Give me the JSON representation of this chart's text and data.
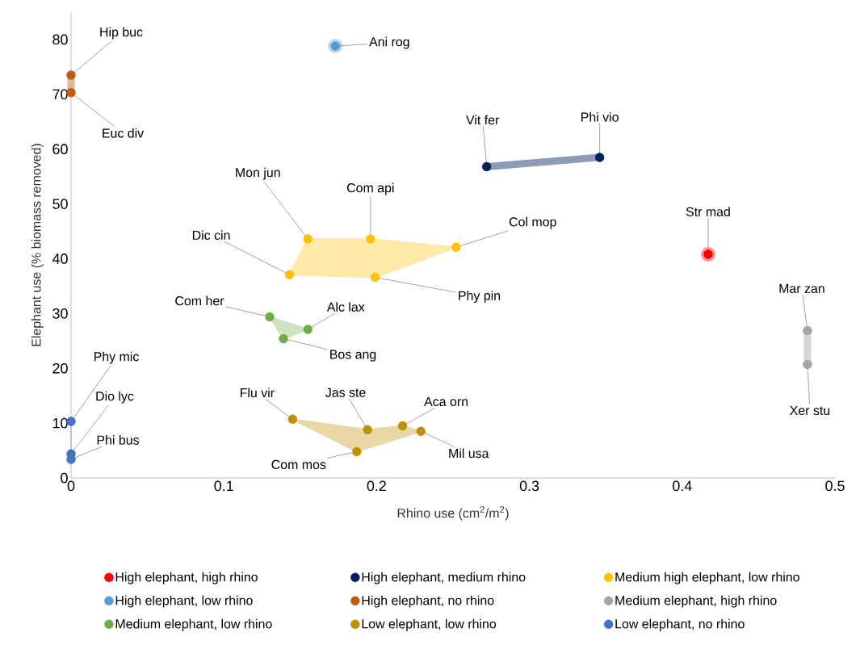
{
  "chart_data": {
    "type": "scatter",
    "xlabel": "Rhino use (cm$^{2}$/m$^{2}$)",
    "ylabel": "Elephant use (% biomass removed)",
    "xlim": [
      0,
      0.5
    ],
    "ylim": [
      0,
      85
    ],
    "xticks": [
      0,
      0.1,
      0.2,
      0.3,
      0.4,
      0.5
    ],
    "yticks": [
      0,
      10,
      20,
      30,
      40,
      50,
      60,
      70,
      80
    ],
    "grid": false,
    "legend": "bottom",
    "series": [
      {
        "name": "High elephant, high rhino",
        "color": "#ff0000",
        "x": [
          0.417
        ],
        "values": [
          40.8
        ]
      },
      {
        "name": "High elephant, medium rhino",
        "color": "#002060",
        "x": [
          0.272,
          0.346
        ],
        "values": [
          56.8,
          58.5
        ]
      },
      {
        "name": "Medium high elephant, low rhino",
        "color": "#ffc000",
        "x": [
          0.143,
          0.155,
          0.196,
          0.252,
          0.199
        ],
        "values": [
          37.1,
          43.6,
          43.6,
          42.1,
          36.6
        ]
      },
      {
        "name": "High elephant, low rhino",
        "color": "#5b9bd5",
        "x": [
          0.173
        ],
        "values": [
          78.8
        ]
      },
      {
        "name": "High elephant, no rhino",
        "color": "#c55a11",
        "x": [
          0,
          0
        ],
        "values": [
          73.5,
          70.3
        ]
      },
      {
        "name": "Medium elephant, high rhino",
        "color": "#a5a5a5",
        "x": [
          0.482,
          0.482
        ],
        "values": [
          26.9,
          20.7
        ]
      },
      {
        "name": "Medium elephant, low rhino",
        "color": "#70ad47",
        "x": [
          0.13,
          0.155,
          0.139
        ],
        "values": [
          29.4,
          27.1,
          25.4
        ]
      },
      {
        "name": "Low elephant, low rhino",
        "color": "#bf9000",
        "x": [
          0.145,
          0.194,
          0.217,
          0.229,
          0.187
        ],
        "values": [
          10.7,
          8.8,
          9.5,
          8.5,
          4.8
        ]
      },
      {
        "name": "Low elephant, no rhino",
        "color": "#4472c4",
        "x": [
          0,
          0,
          0
        ],
        "values": [
          10.3,
          4.4,
          3.4
        ]
      }
    ],
    "annotations": [
      {
        "text": "Hip buc",
        "x": 0,
        "y": 73.5
      },
      {
        "text": "Euc div",
        "x": 0,
        "y": 70.3
      },
      {
        "text": "Ani rog",
        "x": 0.173,
        "y": 78.8
      },
      {
        "text": "Mon jun",
        "x": 0.155,
        "y": 43.6
      },
      {
        "text": "Com api",
        "x": 0.196,
        "y": 43.6
      },
      {
        "text": "Dic cin",
        "x": 0.143,
        "y": 37.1
      },
      {
        "text": "Col mop",
        "x": 0.252,
        "y": 42.1
      },
      {
        "text": "Phy pin",
        "x": 0.199,
        "y": 36.6
      },
      {
        "text": "Vit fer",
        "x": 0.272,
        "y": 56.8
      },
      {
        "text": "Phi vio",
        "x": 0.346,
        "y": 58.5
      },
      {
        "text": "Str mad",
        "x": 0.417,
        "y": 40.8
      },
      {
        "text": "Mar zan",
        "x": 0.482,
        "y": 26.9
      },
      {
        "text": "Xer stu",
        "x": 0.482,
        "y": 20.7
      },
      {
        "text": "Com her",
        "x": 0.13,
        "y": 29.4
      },
      {
        "text": "Alc lax",
        "x": 0.155,
        "y": 27.1
      },
      {
        "text": "Bos ang",
        "x": 0.139,
        "y": 25.4
      },
      {
        "text": "Phy mic",
        "x": 0,
        "y": 10.3
      },
      {
        "text": "Dio lyc",
        "x": 0,
        "y": 4.4
      },
      {
        "text": "Phi bus",
        "x": 0,
        "y": 3.4
      },
      {
        "text": "Flu vir",
        "x": 0.145,
        "y": 10.7
      },
      {
        "text": "Jas ste",
        "x": 0.194,
        "y": 8.8
      },
      {
        "text": "Aca orn",
        "x": 0.217,
        "y": 9.5
      },
      {
        "text": "Mil usa",
        "x": 0.229,
        "y": 8.5
      },
      {
        "text": "Com mos",
        "x": 0.187,
        "y": 4.8
      }
    ]
  }
}
